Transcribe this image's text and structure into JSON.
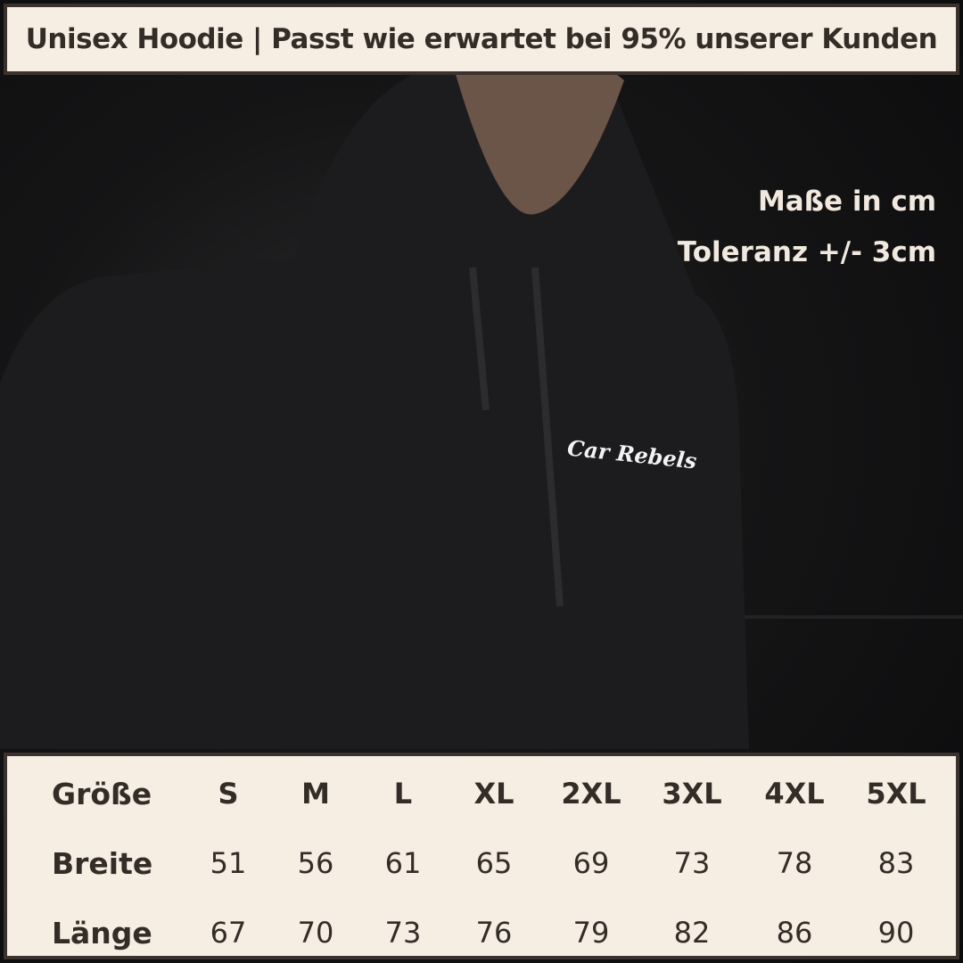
{
  "header": {
    "title": "Unisex Hoodie | Passt wie erwartet bei 95% unserer Kunden"
  },
  "notes": {
    "units": "Maße in cm",
    "tolerance": "Toleranz +/- 3cm"
  },
  "logo": {
    "text": "Car Rebels"
  },
  "size_table": {
    "header_label": "Größe",
    "sizes": [
      "S",
      "M",
      "L",
      "XL",
      "2XL",
      "3XL",
      "4XL",
      "5XL"
    ],
    "rows": [
      {
        "label": "Breite",
        "values": [
          "51",
          "56",
          "61",
          "65",
          "69",
          "73",
          "78",
          "83"
        ]
      },
      {
        "label": "Länge",
        "values": [
          "67",
          "70",
          "73",
          "76",
          "79",
          "82",
          "86",
          "90"
        ]
      }
    ]
  },
  "colors": {
    "panel_bg": "#f6ede3",
    "border": "#3a322d",
    "text": "#342c27",
    "photo_bg": "#151516"
  }
}
